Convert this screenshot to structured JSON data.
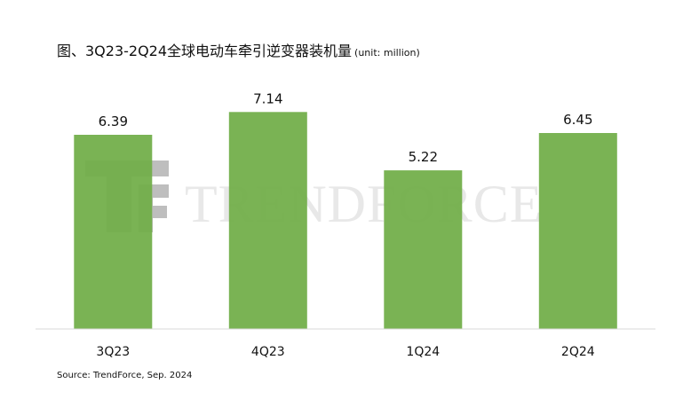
{
  "title": "图、3Q23-2Q24全球电动车牵引逆变器装机量",
  "unit": "(unit: million)",
  "source": "Source: TrendForce, Sep. 2024",
  "watermark": {
    "text": "TRENDFORCE",
    "mark_glyph": "TF"
  },
  "colors": {
    "bar": "#70ad47",
    "axis": "#d9d9d9",
    "watermark": "#e8e8e8"
  },
  "chart_data": {
    "type": "bar",
    "categories": [
      "3Q23",
      "4Q23",
      "1Q24",
      "2Q24"
    ],
    "values": [
      6.39,
      7.14,
      5.22,
      6.45
    ],
    "data_labels": [
      "6.39",
      "7.14",
      "5.22",
      "6.45"
    ],
    "ylim": [
      0,
      8.2
    ],
    "grid": false,
    "legend": "none",
    "axes": {
      "y_visible": false
    }
  }
}
